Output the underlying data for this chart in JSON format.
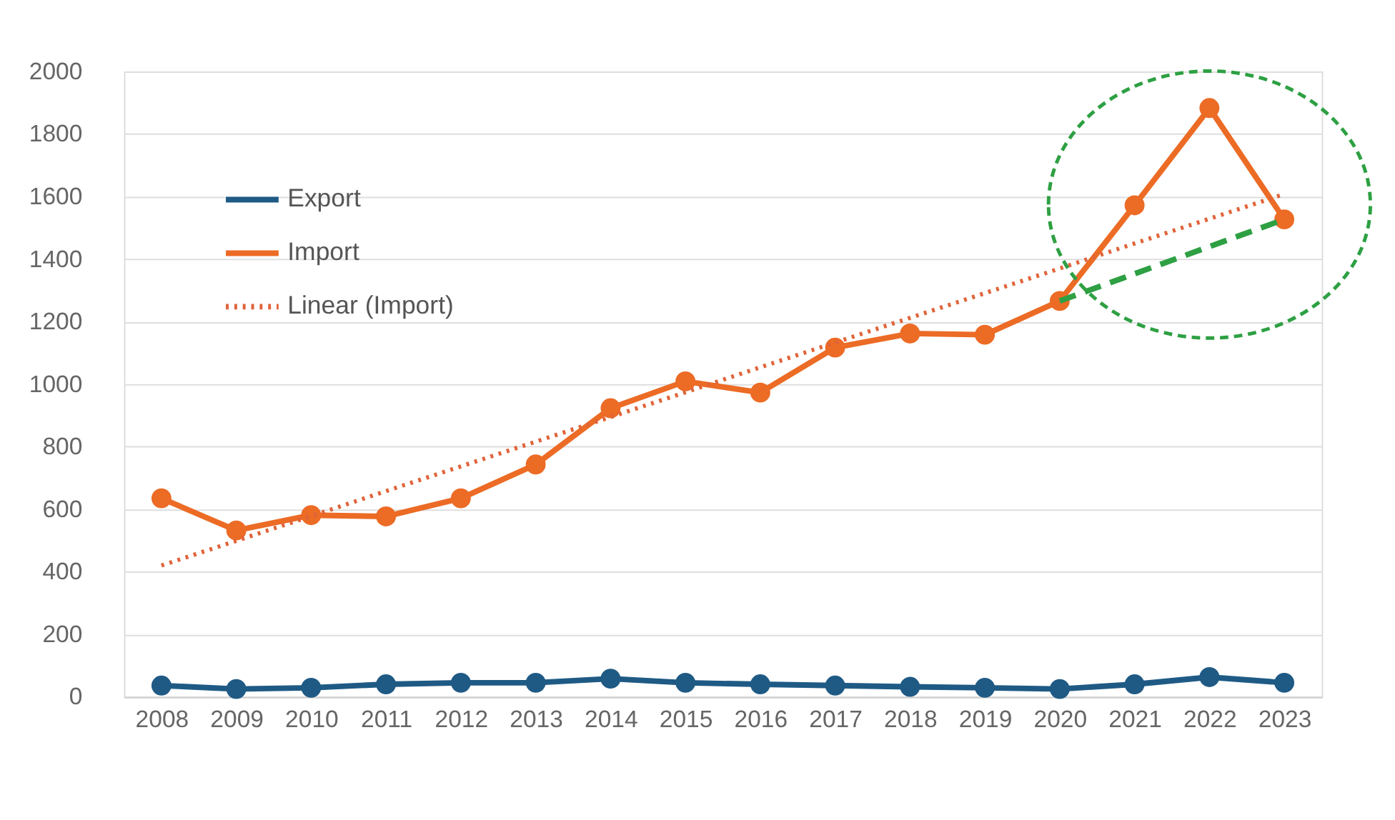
{
  "chart_data": {
    "type": "line",
    "categories": [
      "2008",
      "2009",
      "2010",
      "2011",
      "2012",
      "2013",
      "2014",
      "2015",
      "2016",
      "2017",
      "2018",
      "2019",
      "2020",
      "2021",
      "2022",
      "2023"
    ],
    "series": [
      {
        "name": "Export",
        "color": "#1f5a85",
        "marker": "circle",
        "line_style": "solid",
        "values": [
          36,
          25,
          29,
          40,
          45,
          45,
          58,
          45,
          40,
          36,
          32,
          29,
          25,
          40,
          63,
          45
        ]
      },
      {
        "name": "Import",
        "color": "#ec6b25",
        "marker": "circle",
        "line_style": "solid",
        "values": [
          635,
          532,
          581,
          577,
          635,
          743,
          923,
          1009,
          973,
          1117,
          1162,
          1158,
          1266,
          1572,
          1883,
          1527
        ]
      },
      {
        "name": "Linear (Import)",
        "color": "#e0643a",
        "marker": "none",
        "line_style": "dotted",
        "values": [
          420,
          499,
          578,
          658,
          737,
          816,
          895,
          974,
          1054,
          1133,
          1212,
          1291,
          1370,
          1450,
          1529,
          1608
        ]
      },
      {
        "color": "#2ea043",
        "marker": "none",
        "line_style": "dashed",
        "values": [
          null,
          null,
          null,
          null,
          null,
          null,
          null,
          null,
          null,
          null,
          null,
          null,
          1266,
          1353,
          1440,
          1527
        ]
      }
    ],
    "ylim": [
      0,
      2000
    ],
    "yticks": [
      0,
      200,
      400,
      600,
      800,
      1000,
      1200,
      1400,
      1600,
      1800,
      2000
    ],
    "grid": "y",
    "legend": "top left"
  }
}
